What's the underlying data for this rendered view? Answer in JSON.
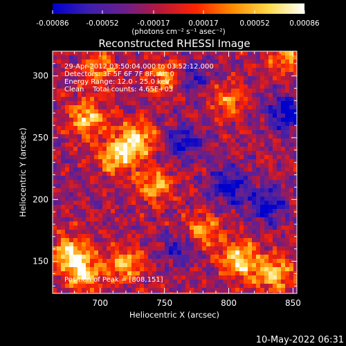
{
  "chart_data": {
    "type": "heatmap",
    "title": "Reconstructed RHESSI Image",
    "xlabel": "Heliocentric X (arcsec)",
    "ylabel": "Heliocentric Y (arcsec)",
    "xlim": [
      663,
      853
    ],
    "ylim": [
      124,
      320
    ],
    "x_ticks": [
      "700",
      "750",
      "800",
      "850"
    ],
    "y_ticks": [
      "150",
      "200",
      "250",
      "300"
    ],
    "x_tick_values": [
      700,
      750,
      800,
      850
    ],
    "y_tick_values": [
      150,
      200,
      250,
      300
    ],
    "colorbar": {
      "ticks": [
        "-0.00086",
        "-0.00052",
        "-0.00017",
        "0.00017",
        "0.00052",
        "0.00086"
      ],
      "tick_values": [
        -0.00086,
        -0.00052,
        -0.00017,
        0.00017,
        0.00052,
        0.00086
      ],
      "range": [
        -0.00086,
        0.00086
      ],
      "units": "(photons cm⁻² s⁻¹ asec⁻²)",
      "colors": [
        "#0000cc",
        "#3c1fae",
        "#6b1f8a",
        "#b8183a",
        "#ff2400",
        "#ff8c00",
        "#ffd84a",
        "#ffffff"
      ]
    },
    "annotations": {
      "time_range": "29-Apr-2012 03:50:04.000 to 03:52:12.000",
      "detectors": "Detectors: 3F 5F 6F 7F 8F, Att 0",
      "energy": "Energy Range: 12.0 - 25.0 keV",
      "algorithm": "Clean    Total counts: 4.65E+03",
      "peak": "Position of Peak = [808,151]"
    },
    "peak": [
      808,
      151
    ],
    "hot_regions": [
      {
        "x": 690,
        "y": 266,
        "level": 0.9
      },
      {
        "x": 728,
        "y": 248,
        "level": 0.95
      },
      {
        "x": 712,
        "y": 235,
        "level": 0.85
      },
      {
        "x": 676,
        "y": 156,
        "level": 0.95
      },
      {
        "x": 688,
        "y": 140,
        "level": 0.85
      },
      {
        "x": 808,
        "y": 151,
        "level": 1.0
      },
      {
        "x": 835,
        "y": 140,
        "level": 0.9
      },
      {
        "x": 742,
        "y": 212,
        "level": 0.7
      },
      {
        "x": 752,
        "y": 300,
        "level": 0.7
      },
      {
        "x": 720,
        "y": 148,
        "level": 0.75
      },
      {
        "x": 800,
        "y": 280,
        "level": 0.55
      },
      {
        "x": 845,
        "y": 315,
        "level": 0.6
      },
      {
        "x": 780,
        "y": 175,
        "level": 0.6
      },
      {
        "x": 700,
        "y": 305,
        "level": 0.6
      }
    ],
    "cold_regions": [
      {
        "x": 845,
        "y": 270,
        "level": -0.8
      },
      {
        "x": 800,
        "y": 210,
        "level": -0.75
      },
      {
        "x": 765,
        "y": 245,
        "level": -0.6
      },
      {
        "x": 830,
        "y": 195,
        "level": -0.7
      },
      {
        "x": 770,
        "y": 300,
        "level": -0.5
      },
      {
        "x": 760,
        "y": 160,
        "level": -0.45
      }
    ]
  },
  "footer": {
    "date": "10-May-2022 06:31"
  }
}
